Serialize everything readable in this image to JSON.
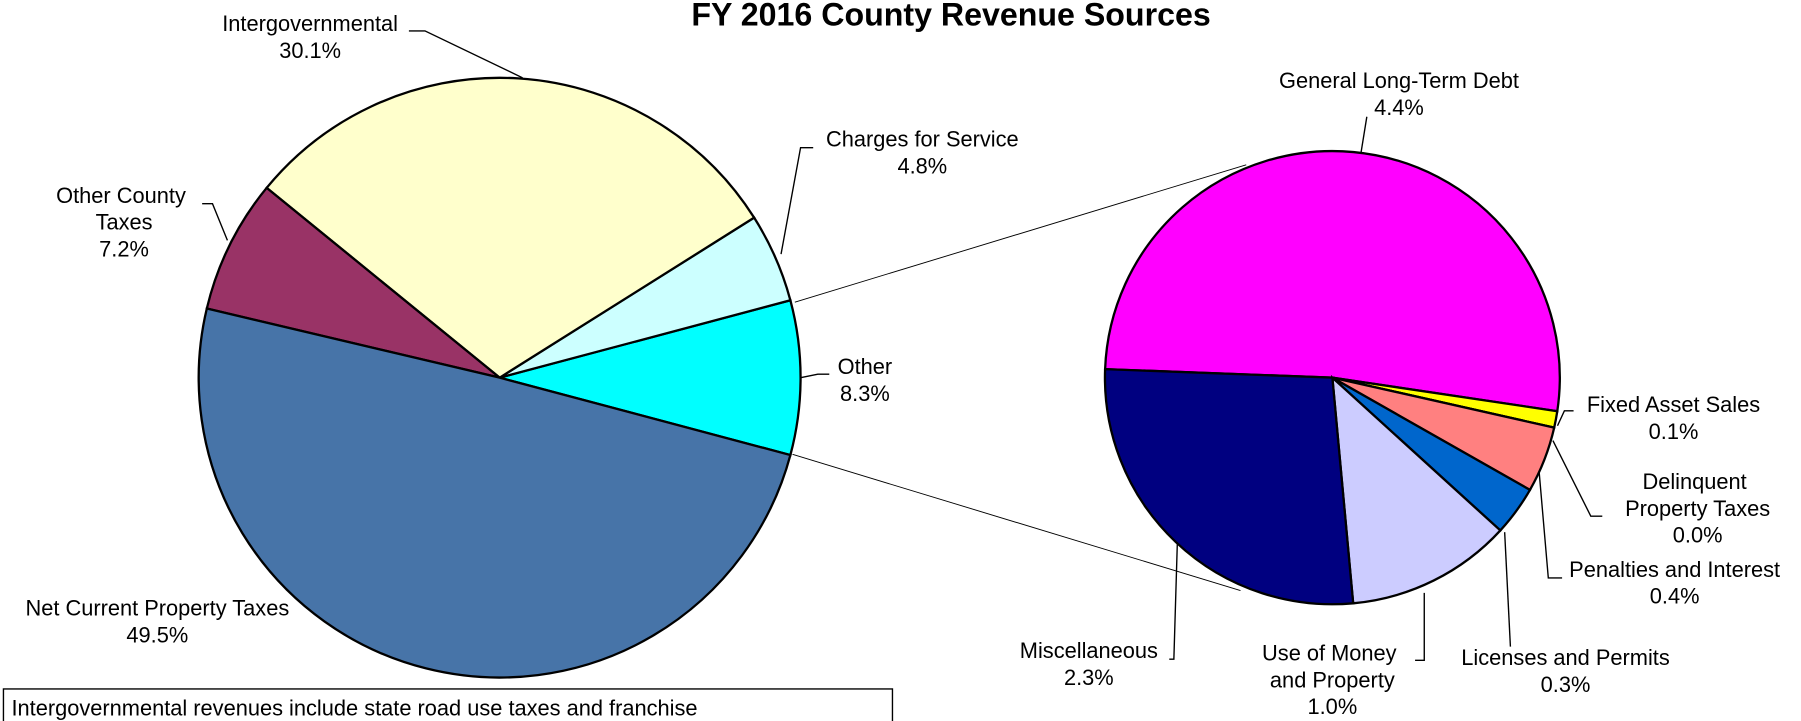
{
  "chart_data": [
    {
      "type": "pie",
      "title": "FY 2016 County Revenue Sources",
      "note": "Intergovernmental revenues include state road use taxes and franchise",
      "categories": [
        "Other",
        "Charges for Service",
        "Intergovernmental",
        "Other County Taxes",
        "Net Current Property Taxes"
      ],
      "values": [
        8.3,
        4.8,
        30.1,
        7.2,
        49.5
      ],
      "value_labels": [
        "8.3%",
        "4.8%",
        "30.1%",
        "7.2%",
        "49.5%"
      ],
      "colors": [
        "#00ffff",
        "#ccffff",
        "#ffffcc",
        "#993366",
        "#4774a8"
      ]
    },
    {
      "type": "pie",
      "categories": [
        "General Long-Term Debt",
        "Fixed Asset Sales",
        "Delinquent Property Taxes",
        "Penalties and Interest",
        "Licenses and Permits",
        "Use of Money and Property",
        "Miscellaneous"
      ],
      "values": [
        4.4,
        0.1,
        0.0,
        0.4,
        0.3,
        1.0,
        2.3
      ],
      "value_labels": [
        "4.4%",
        "0.1%",
        "0.0%",
        "0.4%",
        "0.3%",
        "1.0%",
        "2.3%"
      ],
      "colors": [
        "#ff00ff",
        "#ffff00",
        "#000080",
        "#ff8080",
        "#0066cc",
        "#ccccff",
        "#000080"
      ]
    }
  ]
}
